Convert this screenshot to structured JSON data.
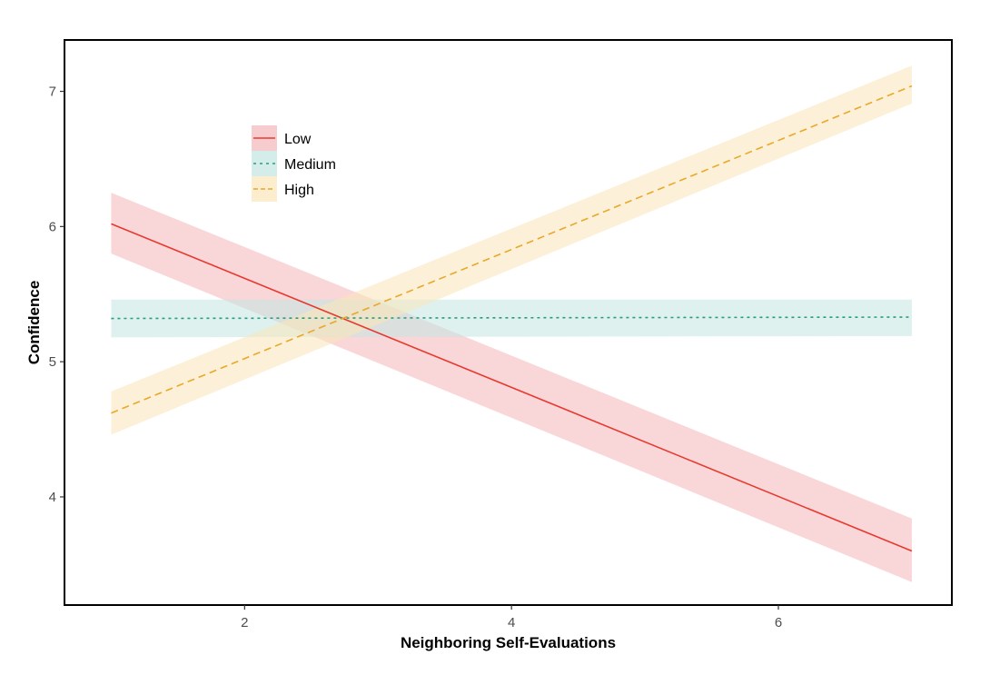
{
  "chart_data": {
    "type": "line",
    "title": "",
    "xlabel": "Neighboring Self-Evaluations",
    "ylabel": "Confidence",
    "xlim": [
      0.65,
      7.3
    ],
    "ylim": [
      3.2,
      7.38
    ],
    "xticks": [
      2,
      4,
      6
    ],
    "yticks": [
      4,
      5,
      6,
      7
    ],
    "grid": false,
    "legend_position": "top-left",
    "series": [
      {
        "name": "Low",
        "color": "#e8392f",
        "band_color": "#f4b6b9",
        "linestyle": "solid",
        "x": [
          1,
          7
        ],
        "y": [
          6.02,
          3.6
        ],
        "lower": [
          5.8,
          3.37
        ],
        "upper": [
          6.25,
          3.84
        ]
      },
      {
        "name": "Medium",
        "color": "#2a9d7f",
        "band_color": "#c3e6e1",
        "linestyle": "dotted",
        "x": [
          1,
          7
        ],
        "y": [
          5.32,
          5.33
        ],
        "lower": [
          5.18,
          5.19
        ],
        "upper": [
          5.46,
          5.46
        ]
      },
      {
        "name": "High",
        "color": "#e9a829",
        "band_color": "#f9e6b8",
        "linestyle": "dashed",
        "x": [
          1,
          7
        ],
        "y": [
          4.62,
          7.04
        ],
        "lower": [
          4.46,
          6.91
        ],
        "upper": [
          4.78,
          7.19
        ]
      }
    ]
  }
}
